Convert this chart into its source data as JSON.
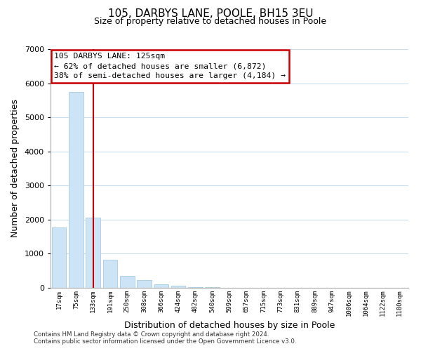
{
  "title": "105, DARBYS LANE, POOLE, BH15 3EU",
  "subtitle": "Size of property relative to detached houses in Poole",
  "xlabel": "Distribution of detached houses by size in Poole",
  "ylabel": "Number of detached properties",
  "bar_labels": [
    "17sqm",
    "75sqm",
    "133sqm",
    "191sqm",
    "250sqm",
    "308sqm",
    "366sqm",
    "424sqm",
    "482sqm",
    "540sqm",
    "599sqm",
    "657sqm",
    "715sqm",
    "773sqm",
    "831sqm",
    "889sqm",
    "947sqm",
    "1006sqm",
    "1064sqm",
    "1122sqm",
    "1180sqm"
  ],
  "bar_heights": [
    1780,
    5750,
    2050,
    820,
    360,
    220,
    100,
    60,
    30,
    15,
    5,
    2,
    0,
    0,
    0,
    0,
    0,
    0,
    0,
    0,
    0
  ],
  "bar_color": "#cce4f5",
  "bar_edge_color": "#a8cce0",
  "vline_x_index": 2,
  "vline_color": "#cc0000",
  "annotation_line1": "105 DARBYS LANE: 125sqm",
  "annotation_line2": "← 62% of detached houses are smaller (6,872)",
  "annotation_line3": "38% of semi-detached houses are larger (4,184) →",
  "ylim": [
    0,
    7000
  ],
  "yticks": [
    0,
    1000,
    2000,
    3000,
    4000,
    5000,
    6000,
    7000
  ],
  "footer_line1": "Contains HM Land Registry data © Crown copyright and database right 2024.",
  "footer_line2": "Contains public sector information licensed under the Open Government Licence v3.0.",
  "bg_color": "#ffffff",
  "grid_color": "#ccddf0"
}
